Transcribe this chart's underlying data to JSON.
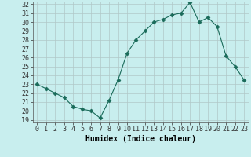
{
  "xlabel": "Humidex (Indice chaleur)",
  "x": [
    0,
    1,
    2,
    3,
    4,
    5,
    6,
    7,
    8,
    9,
    10,
    11,
    12,
    13,
    14,
    15,
    16,
    17,
    18,
    19,
    20,
    21,
    22,
    23
  ],
  "y": [
    23.0,
    22.5,
    22.0,
    21.5,
    20.5,
    20.2,
    20.0,
    19.2,
    21.2,
    23.5,
    26.5,
    28.0,
    29.0,
    30.0,
    30.3,
    30.8,
    31.0,
    32.2,
    30.0,
    30.5,
    29.5,
    26.2,
    25.0,
    23.5
  ],
  "ylim": [
    19,
    32
  ],
  "xlim_min": -0.5,
  "xlim_max": 23.5,
  "yticks": [
    19,
    20,
    21,
    22,
    23,
    24,
    25,
    26,
    27,
    28,
    29,
    30,
    31,
    32
  ],
  "xticks": [
    0,
    1,
    2,
    3,
    4,
    5,
    6,
    7,
    8,
    9,
    10,
    11,
    12,
    13,
    14,
    15,
    16,
    17,
    18,
    19,
    20,
    21,
    22,
    23
  ],
  "line_color": "#1a6b5a",
  "marker": "D",
  "marker_size": 2.5,
  "bg_color": "#c8eeee",
  "grid_color": "#b0c8c8",
  "tick_fontsize": 6,
  "xlabel_fontsize": 7
}
